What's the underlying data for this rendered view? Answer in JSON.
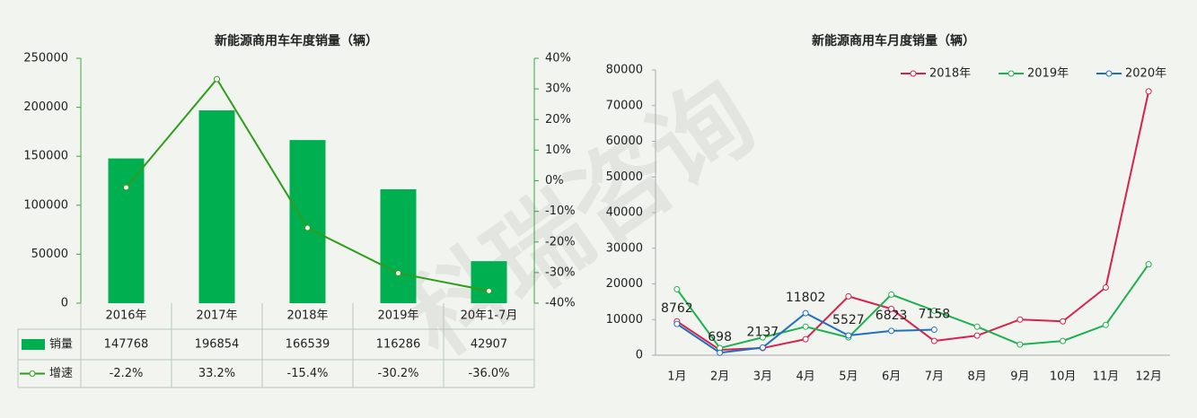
{
  "watermark": "科瑞咨询",
  "chart_data": [
    {
      "type": "bar",
      "title": "新能源商用车年度销量（辆）",
      "categories": [
        "2016年",
        "2017年",
        "2018年",
        "2019年",
        "20年1-7月"
      ],
      "series": [
        {
          "name": "销量",
          "color": "#00b050",
          "values": [
            147768,
            196854,
            166539,
            116286,
            42907
          ]
        },
        {
          "name": "增速",
          "color": "#2e9e1a",
          "axis": "y2",
          "values": [
            -2.2,
            33.2,
            -15.4,
            -30.2,
            -36.0
          ],
          "value_labels": [
            "-2.2%",
            "33.2%",
            "-15.4%",
            "-30.2%",
            "-36.0%"
          ]
        }
      ],
      "ylim": [
        0,
        250000
      ],
      "yticks": [
        0,
        50000,
        100000,
        150000,
        200000,
        250000
      ],
      "y2lim": [
        -40,
        40
      ],
      "y2ticks": [
        {
          "value": -40,
          "label": "-40%"
        },
        {
          "value": -30,
          "label": "-30%"
        },
        {
          "value": -20,
          "label": "-20%"
        },
        {
          "value": -10,
          "label": "-10%"
        },
        {
          "value": 0,
          "label": "0%"
        },
        {
          "value": 10,
          "label": "10%"
        },
        {
          "value": 20,
          "label": "20%"
        },
        {
          "value": 30,
          "label": "30%"
        },
        {
          "value": 40,
          "label": "40%"
        }
      ],
      "data_table": true
    },
    {
      "type": "line",
      "title": "新能源商用车月度销量（辆）",
      "categories": [
        "1月",
        "2月",
        "3月",
        "4月",
        "5月",
        "6月",
        "7月",
        "8月",
        "9月",
        "10月",
        "11月",
        "12月"
      ],
      "series": [
        {
          "name": "2018年",
          "color": "#d6224a",
          "values": [
            9500,
            1500,
            2000,
            4500,
            16500,
            13000,
            4000,
            5500,
            10000,
            9500,
            19000,
            74000
          ]
        },
        {
          "name": "2019年",
          "color": "#1fb050",
          "values": [
            18500,
            2000,
            5000,
            8000,
            5000,
            17000,
            12500,
            8000,
            3000,
            4000,
            8500,
            25500
          ]
        },
        {
          "name": "2020年",
          "color": "#1f6fc0",
          "values": [
            8762,
            698,
            2137,
            11802,
            5527,
            6823,
            7158,
            null,
            null,
            null,
            null,
            null
          ],
          "data_labels": true
        }
      ],
      "ylim": [
        0,
        80000
      ],
      "yticks": [
        0,
        10000,
        20000,
        30000,
        40000,
        50000,
        60000,
        70000,
        80000
      ],
      "legend": "top-right"
    }
  ]
}
